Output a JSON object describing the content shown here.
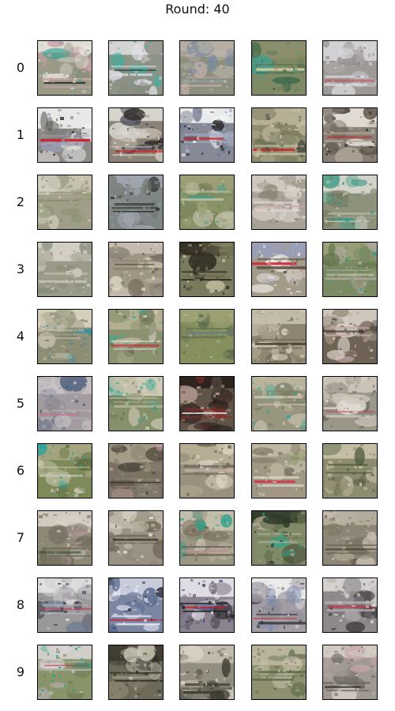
{
  "title": "Round: 40",
  "rows": [
    {
      "label": "0",
      "tiles": [
        {
          "bg": "#9a9a86",
          "sky": "#e8e4e0",
          "band": "#2a2a2a",
          "blob1": "#3aa39a",
          "blob2": "#c9a3a8",
          "accent": "#7f8b6f"
        },
        {
          "bg": "#8e9487",
          "sky": "#dcdcdc",
          "band": "#222222",
          "blob1": "#2fb3a3",
          "blob2": "#e0e0ea",
          "accent": "#8a8a80"
        },
        {
          "bg": "#8b907f",
          "sky": "#b8b2a6",
          "band": "#9aa8c6",
          "blob1": "#c0b8a8",
          "blob2": "#c7aeb0",
          "accent": "#7c8a9e"
        },
        {
          "bg": "#7e8a65",
          "sky": "#8c8e6a",
          "band": "#d8d0a8",
          "blob1": "#2fa39a",
          "blob2": "#3e6a4c",
          "accent": "#6d7a58"
        },
        {
          "bg": "#9e9a98",
          "sky": "#d8d6da",
          "band": "#c24a5a",
          "blob1": "#b0a9a8",
          "blob2": "#e6e2e6",
          "accent": "#8c8c8c"
        }
      ]
    },
    {
      "label": "1",
      "tiles": [
        {
          "bg": "#8e8a86",
          "sky": "#f2f2f2",
          "band": "#cf1f2c",
          "blob1": "#2a2420",
          "blob2": "#9aa0b8",
          "accent": "#7a7a76"
        },
        {
          "bg": "#8a8276",
          "sky": "#dedbd6",
          "band": "#d01c24",
          "blob1": "#2a2622",
          "blob2": "#c6bdb0",
          "accent": "#4a4b5e"
        },
        {
          "bg": "#858a96",
          "sky": "#f4f4f4",
          "band": "#c8282e",
          "blob1": "#222222",
          "blob2": "#a6aec2",
          "accent": "#6c7488"
        },
        {
          "bg": "#8e8a6e",
          "sky": "#b9b39a",
          "band": "#d21e24",
          "blob1": "#4a4e42",
          "blob2": "#c9c2a8",
          "accent": "#6e7256"
        },
        {
          "bg": "#8a8076",
          "sky": "#e8e4de",
          "band": "#c4242c",
          "blob1": "#2a241e",
          "blob2": "#b0a898",
          "accent": "#5a5246"
        }
      ]
    },
    {
      "label": "2",
      "tiles": [
        {
          "bg": "#a09e88",
          "sky": "#c8c4b2",
          "band": "#b79ea0",
          "blob1": "#d8d4c8",
          "blob2": "#86906a",
          "accent": "#8e8c72"
        },
        {
          "bg": "#7e8686",
          "sky": "#a2a8b2",
          "band": "#3a3a36",
          "blob1": "#6e7468",
          "blob2": "#2a2c2a",
          "accent": "#9a9c94"
        },
        {
          "bg": "#8a9268",
          "sky": "#9ea078",
          "band": "#7e8a5e",
          "blob1": "#36a08e",
          "blob2": "#c0c0a8",
          "accent": "#6a7450"
        },
        {
          "bg": "#a8a398",
          "sky": "#d2ccc2",
          "band": "#c8a8ac",
          "blob1": "#8a8878",
          "blob2": "#e2dad4",
          "accent": "#9a9484"
        },
        {
          "bg": "#8e927a",
          "sky": "#dcdad2",
          "band": "#aaa494",
          "blob1": "#3a9a84",
          "blob2": "#c8c6b8",
          "accent": "#6e7458"
        }
      ]
    },
    {
      "label": "3",
      "tiles": [
        {
          "bg": "#9a9a88",
          "sky": "#d8d4ca",
          "band": "#a2a090",
          "blob1": "#7e8a74",
          "blob2": "#c6c0b0",
          "accent": "#8a8a78"
        },
        {
          "bg": "#a09686",
          "sky": "#c8bfb0",
          "band": "#4a4036",
          "blob1": "#e0d8c8",
          "blob2": "#8a8474",
          "accent": "#6a6254"
        },
        {
          "bg": "#7a7a5e",
          "sky": "#4e4a36",
          "band": "#6a6a50",
          "blob1": "#c8c4ac",
          "blob2": "#2e2a20",
          "accent": "#8a8a6a"
        },
        {
          "bg": "#a49a8a",
          "sky": "#9aa0b8",
          "band": "#d0243a",
          "blob1": "#f0ece8",
          "blob2": "#5a5040",
          "accent": "#c8b8b0"
        },
        {
          "bg": "#7a8a62",
          "sky": "#9aa07a",
          "band": "#d0c8b8",
          "blob1": "#2aa08e",
          "blob2": "#b0a8a0",
          "accent": "#5e7048"
        }
      ]
    },
    {
      "label": "4",
      "tiles": [
        {
          "bg": "#8e8e76",
          "sky": "#dcd6c2",
          "band": "#a4a08a",
          "blob1": "#2e8ea0",
          "blob2": "#c2bcaa",
          "accent": "#6e7a5a"
        },
        {
          "bg": "#8a9270",
          "sky": "#b8b294",
          "band": "#c42838",
          "blob1": "#36a896",
          "blob2": "#e0d8d8",
          "accent": "#6a7454"
        },
        {
          "bg": "#86905e",
          "sky": "#9ea274",
          "band": "#6a7a86",
          "blob1": "#c0bc9c",
          "blob2": "#5a6a4e",
          "accent": "#7a8458"
        },
        {
          "bg": "#8e8472",
          "sky": "#c8c0ae",
          "band": "#3e362a",
          "blob1": "#dcd4c4",
          "blob2": "#6a6048",
          "accent": "#a89e8a"
        },
        {
          "bg": "#6e6254",
          "sky": "#d8d0c6",
          "band": "#241e1a",
          "blob1": "#9a8e7e",
          "blob2": "#c6a8a8",
          "accent": "#4a4036"
        }
      ]
    },
    {
      "label": "5",
      "tiles": [
        {
          "bg": "#a29ca0",
          "sky": "#c8c2c6",
          "band": "#c46a7a",
          "blob1": "#445a78",
          "blob2": "#b8b2b4",
          "accent": "#8c8690"
        },
        {
          "bg": "#86906a",
          "sky": "#d6d0c0",
          "band": "#a8a28c",
          "blob1": "#3aa890",
          "blob2": "#c2bea8",
          "accent": "#6a7450"
        },
        {
          "bg": "#5e5448",
          "sky": "#2a1e1a",
          "band": "#e8e2e0",
          "blob1": "#c8a8a0",
          "blob2": "#8a2a2a",
          "accent": "#a89a88"
        },
        {
          "bg": "#98967e",
          "sky": "#bcb6a0",
          "band": "#8e927a",
          "blob1": "#30a890",
          "blob2": "#d8d2c0",
          "accent": "#7a7a62"
        },
        {
          "bg": "#9a9688",
          "sky": "#cec8bc",
          "band": "#c84058",
          "blob1": "#6e6a5e",
          "blob2": "#e0dad4",
          "accent": "#848070"
        }
      ]
    },
    {
      "label": "6",
      "tiles": [
        {
          "bg": "#7e8a5a",
          "sky": "#a8a682",
          "band": "#8a945e",
          "blob1": "#1ea49a",
          "blob2": "#cccab2",
          "accent": "#5e6e42"
        },
        {
          "bg": "#7a7262",
          "sky": "#aaa08c",
          "band": "#2e2a24",
          "blob1": "#c8a0a8",
          "blob2": "#8a8270",
          "accent": "#4e463a"
        },
        {
          "bg": "#9a927e",
          "sky": "#bab098",
          "band": "#c4aea8",
          "blob1": "#e0d8c6",
          "blob2": "#6a6252",
          "accent": "#8a826e"
        },
        {
          "bg": "#a09884",
          "sky": "#c2baa4",
          "band": "#d03a4a",
          "blob1": "#8a9468",
          "blob2": "#e4dcd0",
          "accent": "#7a7260"
        },
        {
          "bg": "#8e8c70",
          "sky": "#c8c2a8",
          "band": "#7a8458",
          "blob1": "#d8d2c2",
          "blob2": "#4e5a3e",
          "accent": "#6e7052"
        }
      ]
    },
    {
      "label": "7",
      "tiles": [
        {
          "bg": "#8e8876",
          "sky": "#d8d2c8",
          "band": "#3a4a2a",
          "blob1": "#b89aa0",
          "blob2": "#6e6a5a",
          "accent": "#7a745e"
        },
        {
          "bg": "#9a9282",
          "sky": "#c0b8a8",
          "band": "#2a2420",
          "blob1": "#ece6de",
          "blob2": "#6e6454",
          "accent": "#8a8270"
        },
        {
          "bg": "#9c9684",
          "sky": "#c8c2b0",
          "band": "#b88e94",
          "blob1": "#2aa088",
          "blob2": "#6a6050",
          "accent": "#8a846e"
        },
        {
          "bg": "#808a68",
          "sky": "#2e3a28",
          "band": "#6a7a50",
          "blob1": "#30a88c",
          "blob2": "#b0aa98",
          "accent": "#5e6a44"
        },
        {
          "bg": "#8e8676",
          "sky": "#b8b0a0",
          "band": "#3a322a",
          "blob1": "#c8c0b0",
          "blob2": "#6a6050",
          "accent": "#7a7262"
        }
      ]
    },
    {
      "label": "8",
      "tiles": [
        {
          "bg": "#9a9898",
          "sky": "#e4e2e0",
          "band": "#c03850",
          "blob1": "#3a3e48",
          "blob2": "#b0aeb4",
          "accent": "#6a7a92"
        },
        {
          "bg": "#7a86a2",
          "sky": "#d0d4e0",
          "band": "#c81e2e",
          "blob1": "#2a2e3a",
          "blob2": "#e8e8f0",
          "accent": "#5a6a8e"
        },
        {
          "bg": "#8a8490",
          "sky": "#e8e6ec",
          "band": "#d01a24",
          "blob1": "#2a3a7a",
          "blob2": "#1e1e22",
          "accent": "#6a6474"
        },
        {
          "bg": "#a09ea4",
          "sky": "#f0eeee",
          "band": "#d0202c",
          "blob1": "#7a8ab0",
          "blob2": "#3a3236",
          "accent": "#8c8a92"
        },
        {
          "bg": "#8e8a8c",
          "sky": "#dcd8d6",
          "band": "#c23244",
          "blob1": "#2a2628",
          "blob2": "#b4b0b2",
          "accent": "#76727a"
        }
      ]
    },
    {
      "label": "9",
      "tiles": [
        {
          "bg": "#8a946a",
          "sky": "#d8d4d4",
          "band": "#c82e3e",
          "blob1": "#1ea68e",
          "blob2": "#b2aca8",
          "accent": "#6a7a52"
        },
        {
          "bg": "#6e6a5a",
          "sky": "#3e3a30",
          "band": "#9a9a82",
          "blob1": "#d2cebc",
          "blob2": "#2a2822",
          "accent": "#8a8670"
        },
        {
          "bg": "#928e80",
          "sky": "#c6c0b0",
          "band": "#6a6656",
          "blob1": "#dcd6c8",
          "blob2": "#3e3a30",
          "accent": "#7e7a6a"
        },
        {
          "bg": "#8e9070",
          "sky": "#bcb8a0",
          "band": "#7e8660",
          "blob1": "#c8c2ae",
          "blob2": "#5a6a4a",
          "accent": "#6e7456"
        },
        {
          "bg": "#a09a92",
          "sky": "#d6d0c8",
          "band": "#2e2a28",
          "blob1": "#c8a6aa",
          "blob2": "#6e6a64",
          "accent": "#8c867c"
        }
      ]
    }
  ]
}
